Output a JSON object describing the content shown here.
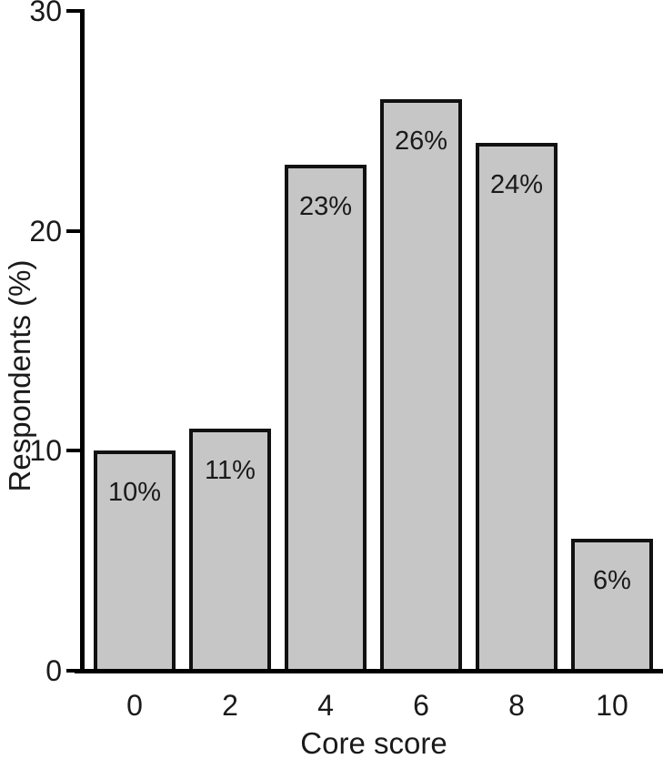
{
  "chart_data": {
    "type": "bar",
    "title": "",
    "xlabel": "Core score",
    "ylabel": "Respondents (%)",
    "categories": [
      "0",
      "2",
      "4",
      "6",
      "8",
      "10"
    ],
    "values": [
      10,
      11,
      23,
      26,
      24,
      6
    ],
    "bar_labels": [
      "10%",
      "11%",
      "23%",
      "26%",
      "24%",
      "6%"
    ],
    "y_ticks": [
      0,
      10,
      20,
      30
    ],
    "ylim": [
      0,
      30
    ],
    "grid": false,
    "legend": false,
    "colors": {
      "bar_fill": "#c6c6c6",
      "bar_border": "#111111",
      "axis": "#000000",
      "text": "#1a1a1a",
      "background": "#ffffff"
    }
  }
}
